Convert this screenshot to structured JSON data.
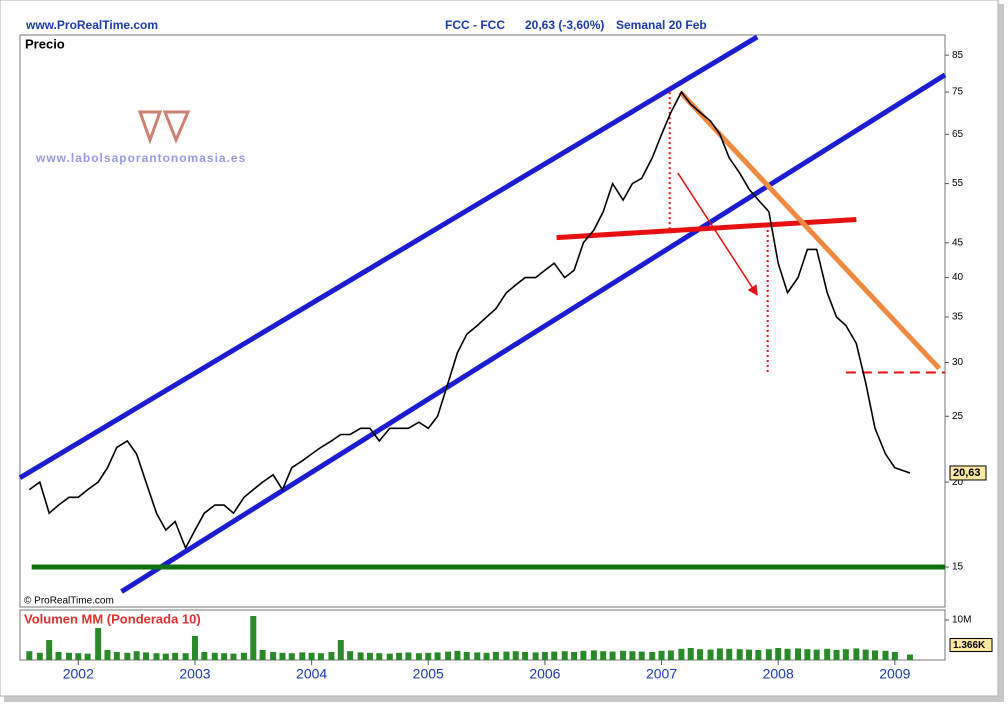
{
  "header": {
    "site": "www.ProRealTime.com",
    "symbol": "FCC - FCC",
    "quote": "20,63 (-3,60%)",
    "period": "Semanal  20 Feb"
  },
  "chart_data": {
    "type": "line",
    "title": "Precio",
    "copyright": "© ProRealTime.com",
    "watermark": "www.labolsaporantonomasia.es",
    "log_scale": true,
    "xlim": [
      2001.5,
      2009.43
    ],
    "ylim": [
      13.1,
      91
    ],
    "xticks": [
      2002,
      2003,
      2004,
      2005,
      2006,
      2007,
      2008,
      2009
    ],
    "yticks": [
      15,
      20,
      25,
      30,
      35,
      40,
      45,
      55,
      65,
      75,
      85
    ],
    "x": [
      2001.58,
      2001.67,
      2001.75,
      2001.83,
      2001.92,
      2002.0,
      2002.08,
      2002.17,
      2002.25,
      2002.33,
      2002.42,
      2002.5,
      2002.58,
      2002.67,
      2002.75,
      2002.83,
      2002.92,
      2003.0,
      2003.08,
      2003.17,
      2003.25,
      2003.33,
      2003.42,
      2003.5,
      2003.58,
      2003.67,
      2003.75,
      2003.83,
      2003.92,
      2004.0,
      2004.08,
      2004.17,
      2004.25,
      2004.33,
      2004.42,
      2004.5,
      2004.58,
      2004.67,
      2004.75,
      2004.83,
      2004.92,
      2005.0,
      2005.08,
      2005.17,
      2005.25,
      2005.33,
      2005.42,
      2005.5,
      2005.58,
      2005.67,
      2005.75,
      2005.83,
      2005.92,
      2006.0,
      2006.08,
      2006.17,
      2006.25,
      2006.33,
      2006.42,
      2006.5,
      2006.58,
      2006.67,
      2006.75,
      2006.83,
      2006.92,
      2007.0,
      2007.08,
      2007.17,
      2007.25,
      2007.33,
      2007.42,
      2007.5,
      2007.58,
      2007.67,
      2007.75,
      2007.83,
      2007.92,
      2008.0,
      2008.08,
      2008.17,
      2008.25,
      2008.33,
      2008.42,
      2008.5,
      2008.58,
      2008.67,
      2008.75,
      2008.83,
      2008.92,
      2009.0,
      2009.13
    ],
    "series": [
      {
        "name": "Precio",
        "color": "#000000",
        "values": [
          19.5,
          20,
          18,
          18.5,
          19,
          19,
          19.5,
          20,
          21,
          22.5,
          23,
          22,
          20,
          18,
          17,
          17.5,
          16,
          17,
          18,
          18.5,
          18.5,
          18,
          19,
          19.5,
          20,
          20.5,
          19.5,
          21,
          21.5,
          22,
          22.5,
          23,
          23.5,
          23.5,
          24,
          24,
          23,
          24,
          24,
          24,
          24.5,
          24,
          25,
          28,
          31,
          33,
          34,
          35,
          36,
          38,
          39,
          40,
          40,
          41,
          42,
          40,
          41,
          45,
          47,
          50,
          55,
          52,
          55,
          56,
          60,
          65,
          70,
          75,
          72,
          70,
          68,
          65,
          60,
          57,
          54,
          52,
          50,
          42,
          38,
          40,
          44,
          44,
          38,
          35,
          34,
          32,
          28,
          24,
          22,
          21,
          20.63
        ]
      }
    ],
    "last_price": {
      "value": 20.63,
      "label": "20,63"
    },
    "lines": [
      {
        "x": [
          2001.5,
          2007.82
        ],
        "y": [
          20.3,
          90.4
        ],
        "color": "#1c1cd0",
        "dash": "solid"
      },
      {
        "x": [
          2002.37,
          2009.43
        ],
        "y": [
          13.8,
          79.5
        ],
        "color": "#1c1cd0",
        "dash": "solid"
      },
      {
        "x": [
          2006.1,
          2008.67
        ],
        "y": [
          45.8,
          48.7
        ],
        "color": "#e81010",
        "dash": "solid"
      },
      {
        "x": [
          2007.16,
          2009.38
        ],
        "y": [
          75,
          29.4
        ],
        "color": "#f08a40",
        "dash": "solid"
      },
      {
        "x": [
          2001.6,
          2009.43
        ],
        "y": [
          15,
          15
        ],
        "color": "#107010",
        "dash": "solid"
      },
      {
        "x": [
          2008.58,
          2009.43
        ],
        "y": [
          29,
          29
        ],
        "color": "#e81010",
        "dash": "dashed"
      },
      {
        "x": [
          2007.07,
          2007.07
        ],
        "y": [
          75,
          47
        ],
        "color": "#e81010",
        "dash": "dotted"
      },
      {
        "x": [
          2007.91,
          2007.91
        ],
        "y": [
          47,
          29
        ],
        "color": "#e81010",
        "dash": "dotted"
      },
      {
        "x": [
          2007.14,
          2007.82
        ],
        "y": [
          57,
          37.7
        ],
        "color": "#e81010",
        "dash": "arrow"
      }
    ],
    "volume": {
      "title": "Volumen MM (Ponderada 10)",
      "color": "#2a8a2a",
      "ylim": [
        0,
        12000
      ],
      "yticks": [
        {
          "value": 10000,
          "label": "10M"
        }
      ],
      "last": {
        "value": 1366,
        "label": "1.366K"
      },
      "values": [
        2200,
        1800,
        5000,
        2000,
        1800,
        1700,
        1600,
        8000,
        2500,
        2000,
        1800,
        2200,
        1900,
        1700,
        1600,
        1800,
        1700,
        6000,
        2000,
        1800,
        1700,
        1600,
        1800,
        11000,
        2500,
        2000,
        1800,
        1700,
        1900,
        1800,
        1700,
        2000,
        5000,
        2200,
        1900,
        1800,
        1700,
        1600,
        1800,
        1900,
        1700,
        1800,
        1900,
        2100,
        2300,
        2000,
        1900,
        1800,
        2000,
        2100,
        2200,
        2000,
        1900,
        2000,
        2100,
        2200,
        2000,
        2300,
        2400,
        2200,
        2100,
        2300,
        2200,
        2100,
        2000,
        2300,
        2400,
        2800,
        3000,
        2700,
        2600,
        2900,
        2800,
        2700,
        2600,
        2500,
        2700,
        3000,
        2800,
        2900,
        2700,
        2600,
        2800,
        2500,
        2700,
        2900,
        2600,
        2400,
        2300,
        2000,
        1366
      ]
    }
  }
}
